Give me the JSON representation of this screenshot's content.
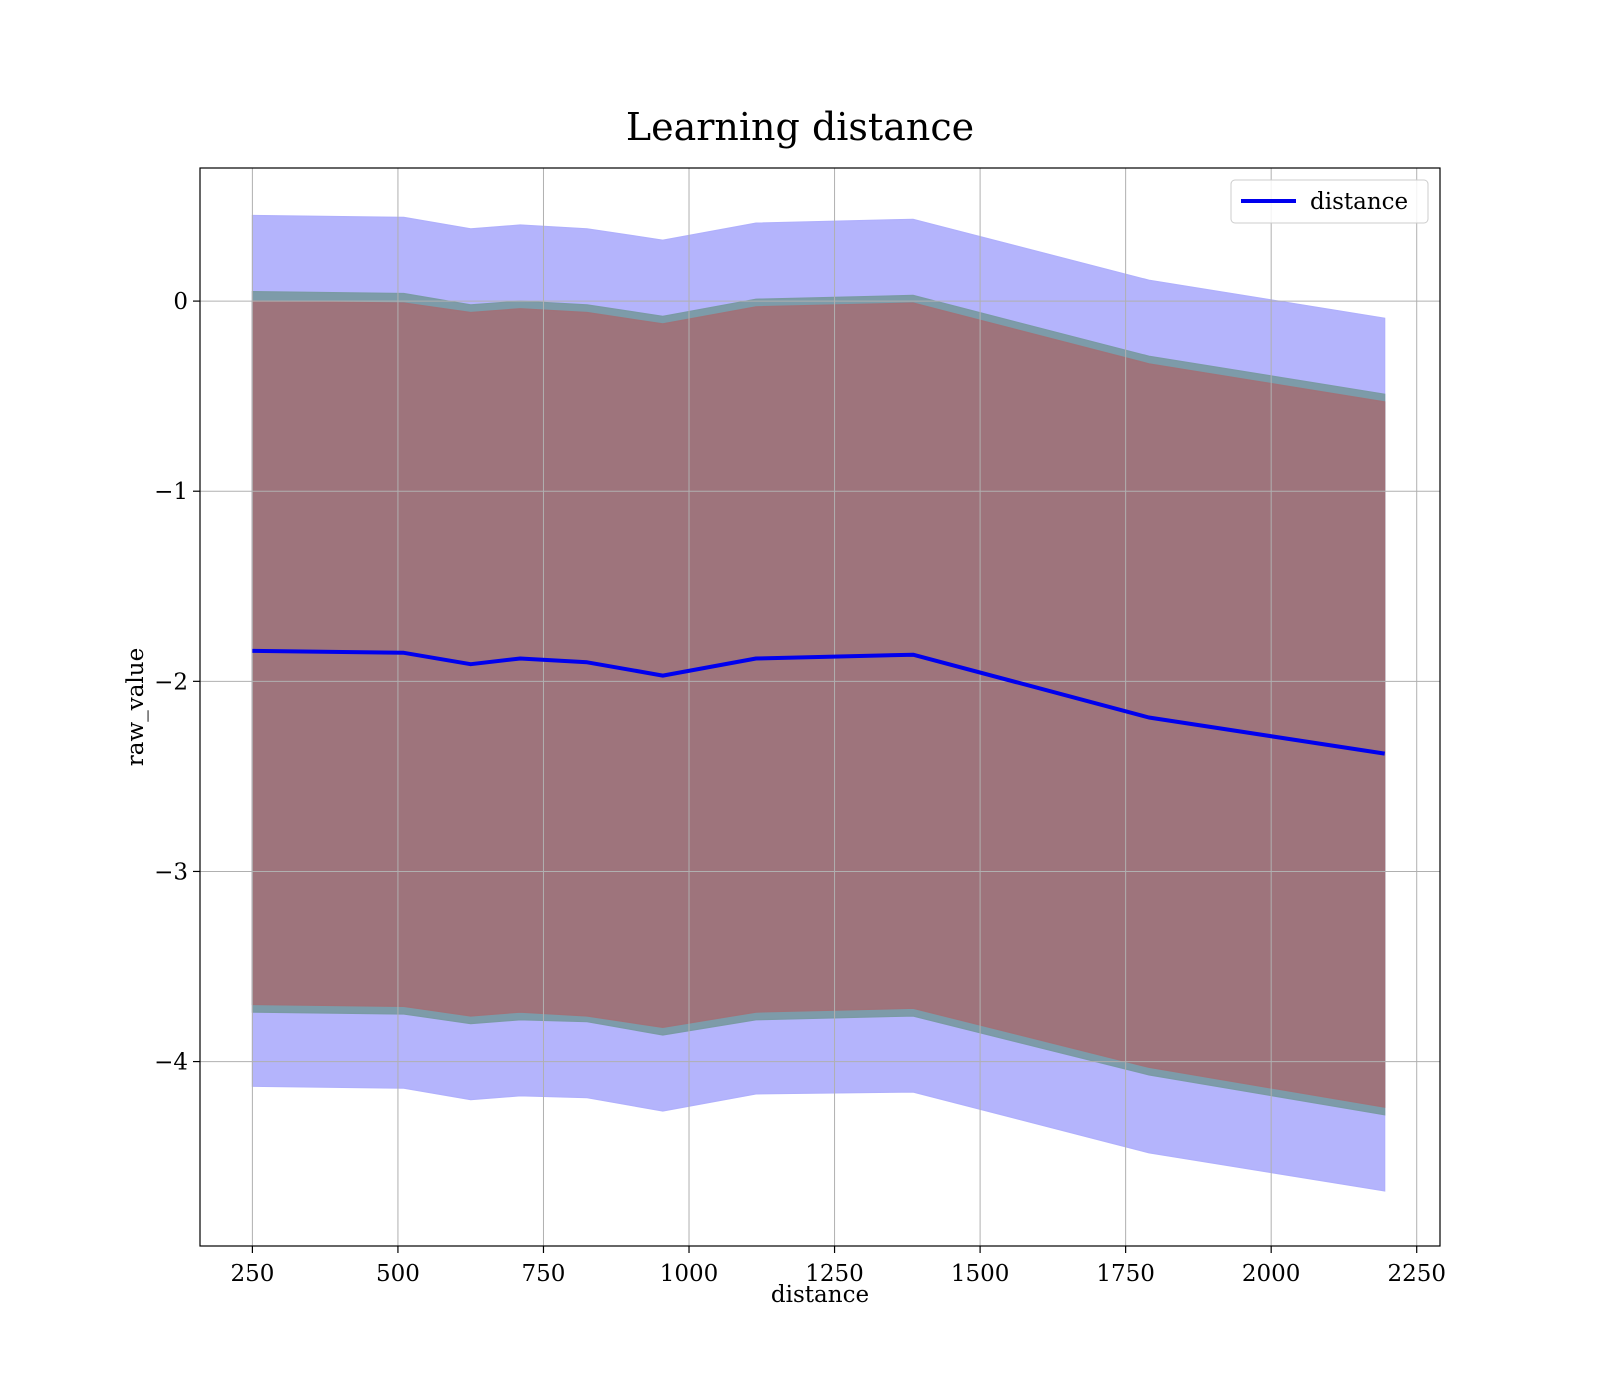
{
  "chart_data": {
    "type": "line",
    "title": "Learning distance",
    "xlabel": "distance",
    "ylabel": "raw_value",
    "xlim": [
      160,
      2290
    ],
    "ylim": [
      -4.97,
      0.7
    ],
    "xticks": [
      250,
      500,
      750,
      1000,
      1250,
      1500,
      1750,
      2000,
      2250
    ],
    "yticks": [
      0,
      -1,
      -2,
      -3,
      -4
    ],
    "xtick_labels": [
      "250",
      "500",
      "750",
      "1000",
      "1250",
      "1500",
      "1750",
      "2000",
      "2250"
    ],
    "ytick_labels": [
      "0",
      "−1",
      "−2",
      "−3",
      "−4"
    ],
    "grid": true,
    "legend": {
      "position": "top-right",
      "entries": [
        "distance"
      ]
    },
    "x": [
      250,
      510,
      625,
      710,
      825,
      955,
      1115,
      1385,
      1790,
      2195
    ],
    "series": [
      {
        "name": "distance",
        "color": "#0000ee",
        "values": [
          -1.84,
          -1.85,
          -1.91,
          -1.88,
          -1.9,
          -1.97,
          -1.88,
          -1.86,
          -2.19,
          -2.38
        ]
      }
    ],
    "bands": [
      {
        "color": "#b0b0fc",
        "upper": [
          0.45,
          0.44,
          0.38,
          0.4,
          0.38,
          0.32,
          0.41,
          0.43,
          0.11,
          -0.09
        ],
        "lower": [
          -4.13,
          -4.14,
          -4.2,
          -4.18,
          -4.19,
          -4.26,
          -4.17,
          -4.16,
          -4.48,
          -4.68
        ]
      },
      {
        "color": "#7a9aa4",
        "upper": [
          0.05,
          0.04,
          -0.02,
          0.0,
          -0.02,
          -0.08,
          0.01,
          0.03,
          -0.29,
          -0.49
        ],
        "lower": [
          -3.74,
          -3.75,
          -3.8,
          -3.78,
          -3.79,
          -3.86,
          -3.78,
          -3.76,
          -4.07,
          -4.28
        ]
      },
      {
        "color": "#a07279",
        "upper": [
          0.0,
          -0.01,
          -0.06,
          -0.04,
          -0.06,
          -0.12,
          -0.03,
          -0.01,
          -0.33,
          -0.53
        ],
        "lower": [
          -3.7,
          -3.71,
          -3.76,
          -3.74,
          -3.76,
          -3.82,
          -3.74,
          -3.72,
          -4.03,
          -4.24
        ]
      }
    ]
  }
}
